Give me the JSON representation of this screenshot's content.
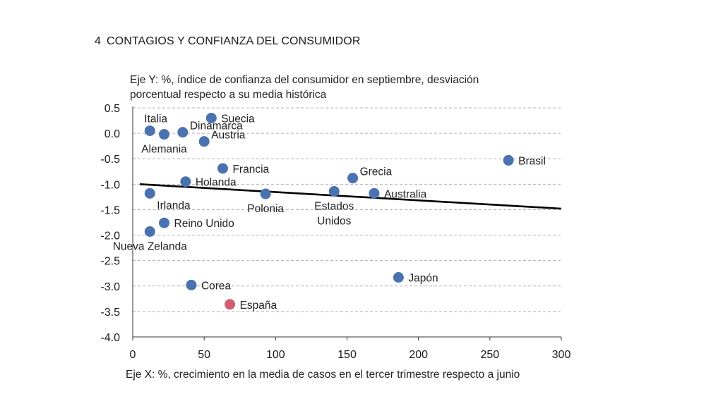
{
  "figure": {
    "number": "4",
    "title": "CONTAGIOS Y CONFIANZA DEL CONSUMIDOR"
  },
  "chart_data": {
    "type": "scatter",
    "title": "CONTAGIOS Y CONFIANZA DEL CONSUMIDOR",
    "ylabel_lines": [
      "Eje Y: %, índice de confianza del consumidor en septiembre, desviación",
      "porcentual respecto a su media histórica"
    ],
    "xlabel": "Eje X: %, crecimiento en la media de casos en el tercer trimestre respecto a junio",
    "xlim": [
      0,
      300
    ],
    "ylim": [
      -4.0,
      0.5
    ],
    "x_ticks": [
      0,
      50,
      100,
      150,
      200,
      250,
      300
    ],
    "y_ticks": [
      0.5,
      0.0,
      -0.5,
      -1.0,
      -1.5,
      -2.0,
      -2.5,
      -3.0,
      -3.5,
      -4.0
    ],
    "y_tick_labels": [
      "0.5",
      "0.0",
      "-0.5",
      "-1.0",
      "-1.5",
      "-2.0",
      "-2.5",
      "-3.0",
      "-3.5",
      "-4.0"
    ],
    "x_tick_labels": [
      "0",
      "50",
      "100",
      "150",
      "200",
      "250",
      "300"
    ],
    "grid": "horizontal-dashed",
    "colors": {
      "default": "#4a72b0",
      "highlight": "#cf5f6e",
      "trend": "#000000",
      "grid": "#b0b0b0"
    },
    "trendline": {
      "x": [
        5,
        300
      ],
      "y": [
        -1.0,
        -1.48
      ]
    },
    "points": [
      {
        "name": "Italia",
        "x": 12,
        "y": 0.05,
        "label": "Italia",
        "anchor": "above-right"
      },
      {
        "name": "Alemania",
        "x": 22,
        "y": -0.02,
        "label": "Alemania",
        "anchor": "below"
      },
      {
        "name": "Dinamarca",
        "x": 35,
        "y": 0.02,
        "label": "Dinamarca",
        "anchor": "right-up"
      },
      {
        "name": "Suecia",
        "x": 55,
        "y": 0.3,
        "label": "Suecia",
        "anchor": "right"
      },
      {
        "name": "Austria",
        "x": 50,
        "y": -0.16,
        "label": "Austria",
        "anchor": "right-up"
      },
      {
        "name": "Francia",
        "x": 63,
        "y": -0.69,
        "label": "Francia",
        "anchor": "right"
      },
      {
        "name": "Holanda",
        "x": 37,
        "y": -0.95,
        "label": "Holanda",
        "anchor": "right"
      },
      {
        "name": "Irlanda",
        "x": 12,
        "y": -1.18,
        "label": "Irlanda",
        "anchor": "below-right"
      },
      {
        "name": "Polonia",
        "x": 93,
        "y": -1.19,
        "label": "Polonia",
        "anchor": "below"
      },
      {
        "name": "Estados Unidos",
        "x": 141,
        "y": -1.14,
        "label": "Estados",
        "label2": "Unidos",
        "anchor": "below"
      },
      {
        "name": "Australia",
        "x": 169,
        "y": -1.18,
        "label": "Australia",
        "anchor": "right"
      },
      {
        "name": "Grecia",
        "x": 154,
        "y": -0.88,
        "label": "Grecia",
        "anchor": "right-up"
      },
      {
        "name": "Brasil",
        "x": 263,
        "y": -0.53,
        "label": "Brasil",
        "anchor": "right"
      },
      {
        "name": "Reino Unido",
        "x": 22,
        "y": -1.76,
        "label": "Reino Unido",
        "anchor": "right"
      },
      {
        "name": "Nueva Zelanda",
        "x": 12,
        "y": -1.93,
        "label": "Nueva Zelanda",
        "anchor": "below"
      },
      {
        "name": "Corea",
        "x": 41,
        "y": -2.98,
        "label": "Corea",
        "anchor": "right"
      },
      {
        "name": "Japón",
        "x": 186,
        "y": -2.83,
        "label": "Japón",
        "anchor": "right"
      },
      {
        "name": "España",
        "x": 68,
        "y": -3.36,
        "label": "España",
        "anchor": "right",
        "highlight": true
      }
    ]
  }
}
